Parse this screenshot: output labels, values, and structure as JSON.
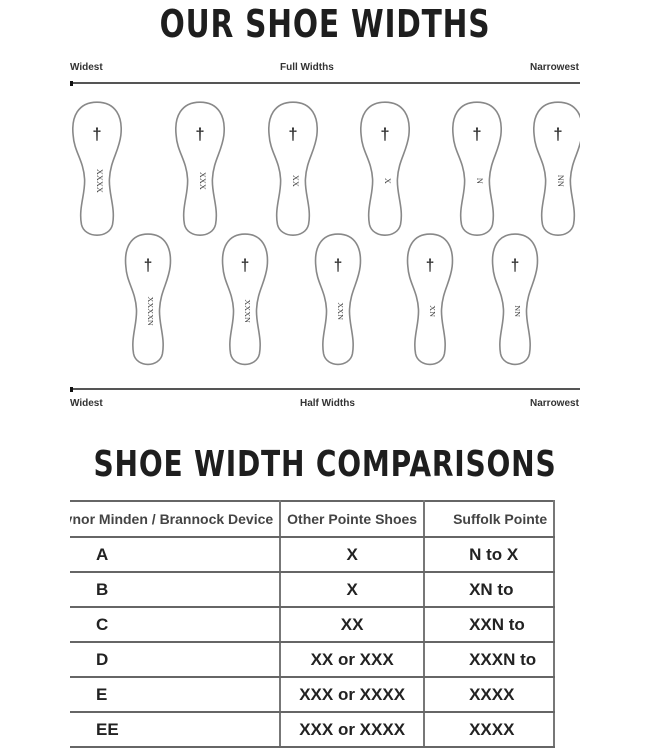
{
  "title": "OUR SHOE WIDTHS",
  "full_widths": {
    "left": "Widest",
    "center": "Full Widths",
    "right": "Narrowest",
    "soles": [
      "XXXX",
      "XXX",
      "XX",
      "X",
      "N",
      "NN"
    ]
  },
  "half_widths": {
    "left": "Widest",
    "center": "Half Widths",
    "right": "Narrowest",
    "soles": [
      "XXXXN",
      "XXXN",
      "XXN",
      "XN",
      "NN"
    ]
  },
  "comparison_title": "SHOE WIDTH COMPARISONS",
  "table": {
    "headers": [
      "Gaynor Minden / Brannock Device",
      "Other Pointe Shoes",
      "Suffolk Pointe"
    ],
    "rows": [
      [
        "A",
        "X",
        "N to X"
      ],
      [
        "B",
        "X",
        "XN to"
      ],
      [
        "C",
        "XX",
        "XXN to"
      ],
      [
        "D",
        "XX or XXX",
        "XXXN to"
      ],
      [
        "E",
        "XXX or XXXX",
        "XXXX"
      ],
      [
        "EE",
        "XXX or XXXX",
        "XXXX"
      ]
    ]
  },
  "colors": {
    "ink": "#222222",
    "outline": "#777777"
  }
}
